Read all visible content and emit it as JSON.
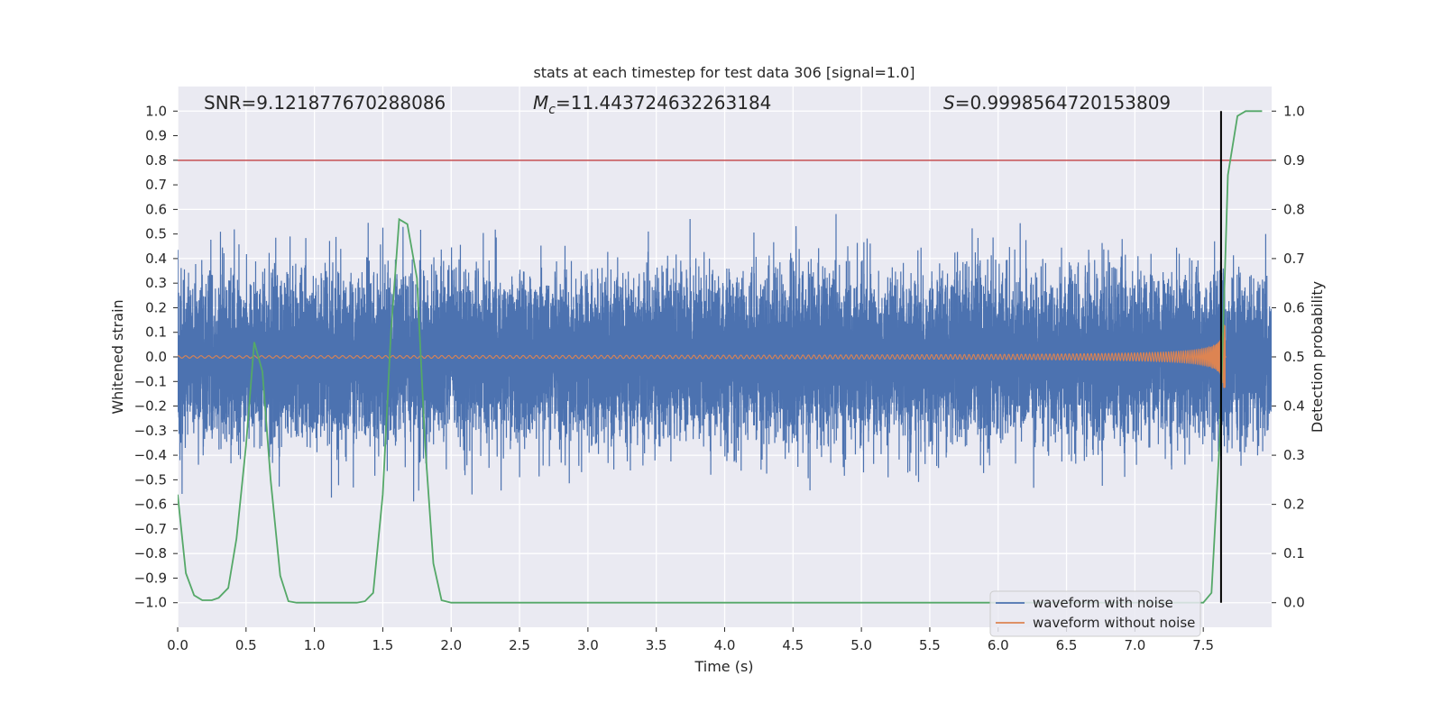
{
  "chart_data": {
    "type": "line",
    "title": "stats at each timestep for test data 306 [signal=1.0]",
    "xlabel": "Time (s)",
    "ylabel": "Whitened strain",
    "y2label": "Detection probability",
    "xlim": [
      0.0,
      8.0
    ],
    "ylim": [
      -1.1,
      1.1
    ],
    "y2lim": [
      -0.05,
      1.05
    ],
    "xticks": [
      "0.0",
      "0.5",
      "1.0",
      "1.5",
      "2.0",
      "2.5",
      "3.0",
      "3.5",
      "4.0",
      "4.5",
      "5.0",
      "5.5",
      "6.0",
      "6.5",
      "7.0",
      "7.5"
    ],
    "yticks": [
      "1.0",
      "0.9",
      "0.8",
      "0.7",
      "0.6",
      "0.5",
      "0.4",
      "0.3",
      "0.2",
      "0.1",
      "0.0",
      "−0.1",
      "−0.2",
      "−0.3",
      "−0.4",
      "−0.5",
      "−0.6",
      "−0.7",
      "−0.8",
      "−0.9",
      "−1.0"
    ],
    "y2ticks": [
      "1.0",
      "0.9",
      "0.8",
      "0.7",
      "0.6",
      "0.5",
      "0.4",
      "0.3",
      "0.2",
      "0.1",
      "0.0"
    ],
    "annotations": {
      "snr": "SNR=9.121877670288086",
      "mc_symbol": "M",
      "mc_sub": "c",
      "mc_value": "=11.443724632263184",
      "s_symbol": "S",
      "s_value": "=0.9998564720153809"
    },
    "threshold": {
      "value": 0.8,
      "color": "#c44e52"
    },
    "merger_time": 7.63,
    "legend": [
      {
        "label": "waveform with noise",
        "color": "#4c72b0"
      },
      {
        "label": "waveform without noise",
        "color": "#dd8452"
      }
    ],
    "series": [
      {
        "name": "waveform with noise",
        "color": "#4c72b0",
        "sample_rate": 2048,
        "noise_sigma": 0.16,
        "span": [
          0.0,
          8.0
        ]
      },
      {
        "name": "waveform without noise",
        "color": "#dd8452",
        "span": [
          0.0,
          7.67
        ],
        "peak_amplitude": 0.38
      },
      {
        "name": "detection probability",
        "color": "#55a868",
        "x": [
          0.0,
          0.06,
          0.12,
          0.18,
          0.25,
          0.3,
          0.37,
          0.43,
          0.5,
          0.56,
          0.62,
          0.68,
          0.75,
          0.81,
          0.87,
          1.0,
          1.12,
          1.25,
          1.31,
          1.37,
          1.43,
          1.5,
          1.56,
          1.62,
          1.68,
          1.75,
          1.81,
          1.87,
          1.93,
          2.0,
          2.5,
          3.0,
          4.0,
          5.0,
          6.0,
          7.0,
          7.5,
          7.56,
          7.62,
          7.68,
          7.75,
          7.81,
          7.87,
          7.93
        ],
        "y": [
          0.22,
          0.06,
          0.015,
          0.005,
          0.005,
          0.01,
          0.03,
          0.13,
          0.32,
          0.53,
          0.47,
          0.25,
          0.055,
          0.003,
          0.0,
          0.0,
          0.0,
          0.0,
          0.0,
          0.003,
          0.02,
          0.22,
          0.55,
          0.78,
          0.77,
          0.66,
          0.32,
          0.08,
          0.005,
          0.0,
          0.0,
          0.0,
          0.0,
          0.0,
          0.0,
          0.0,
          0.0,
          0.02,
          0.33,
          0.87,
          0.99,
          1.0,
          1.0,
          1.0
        ]
      }
    ]
  }
}
